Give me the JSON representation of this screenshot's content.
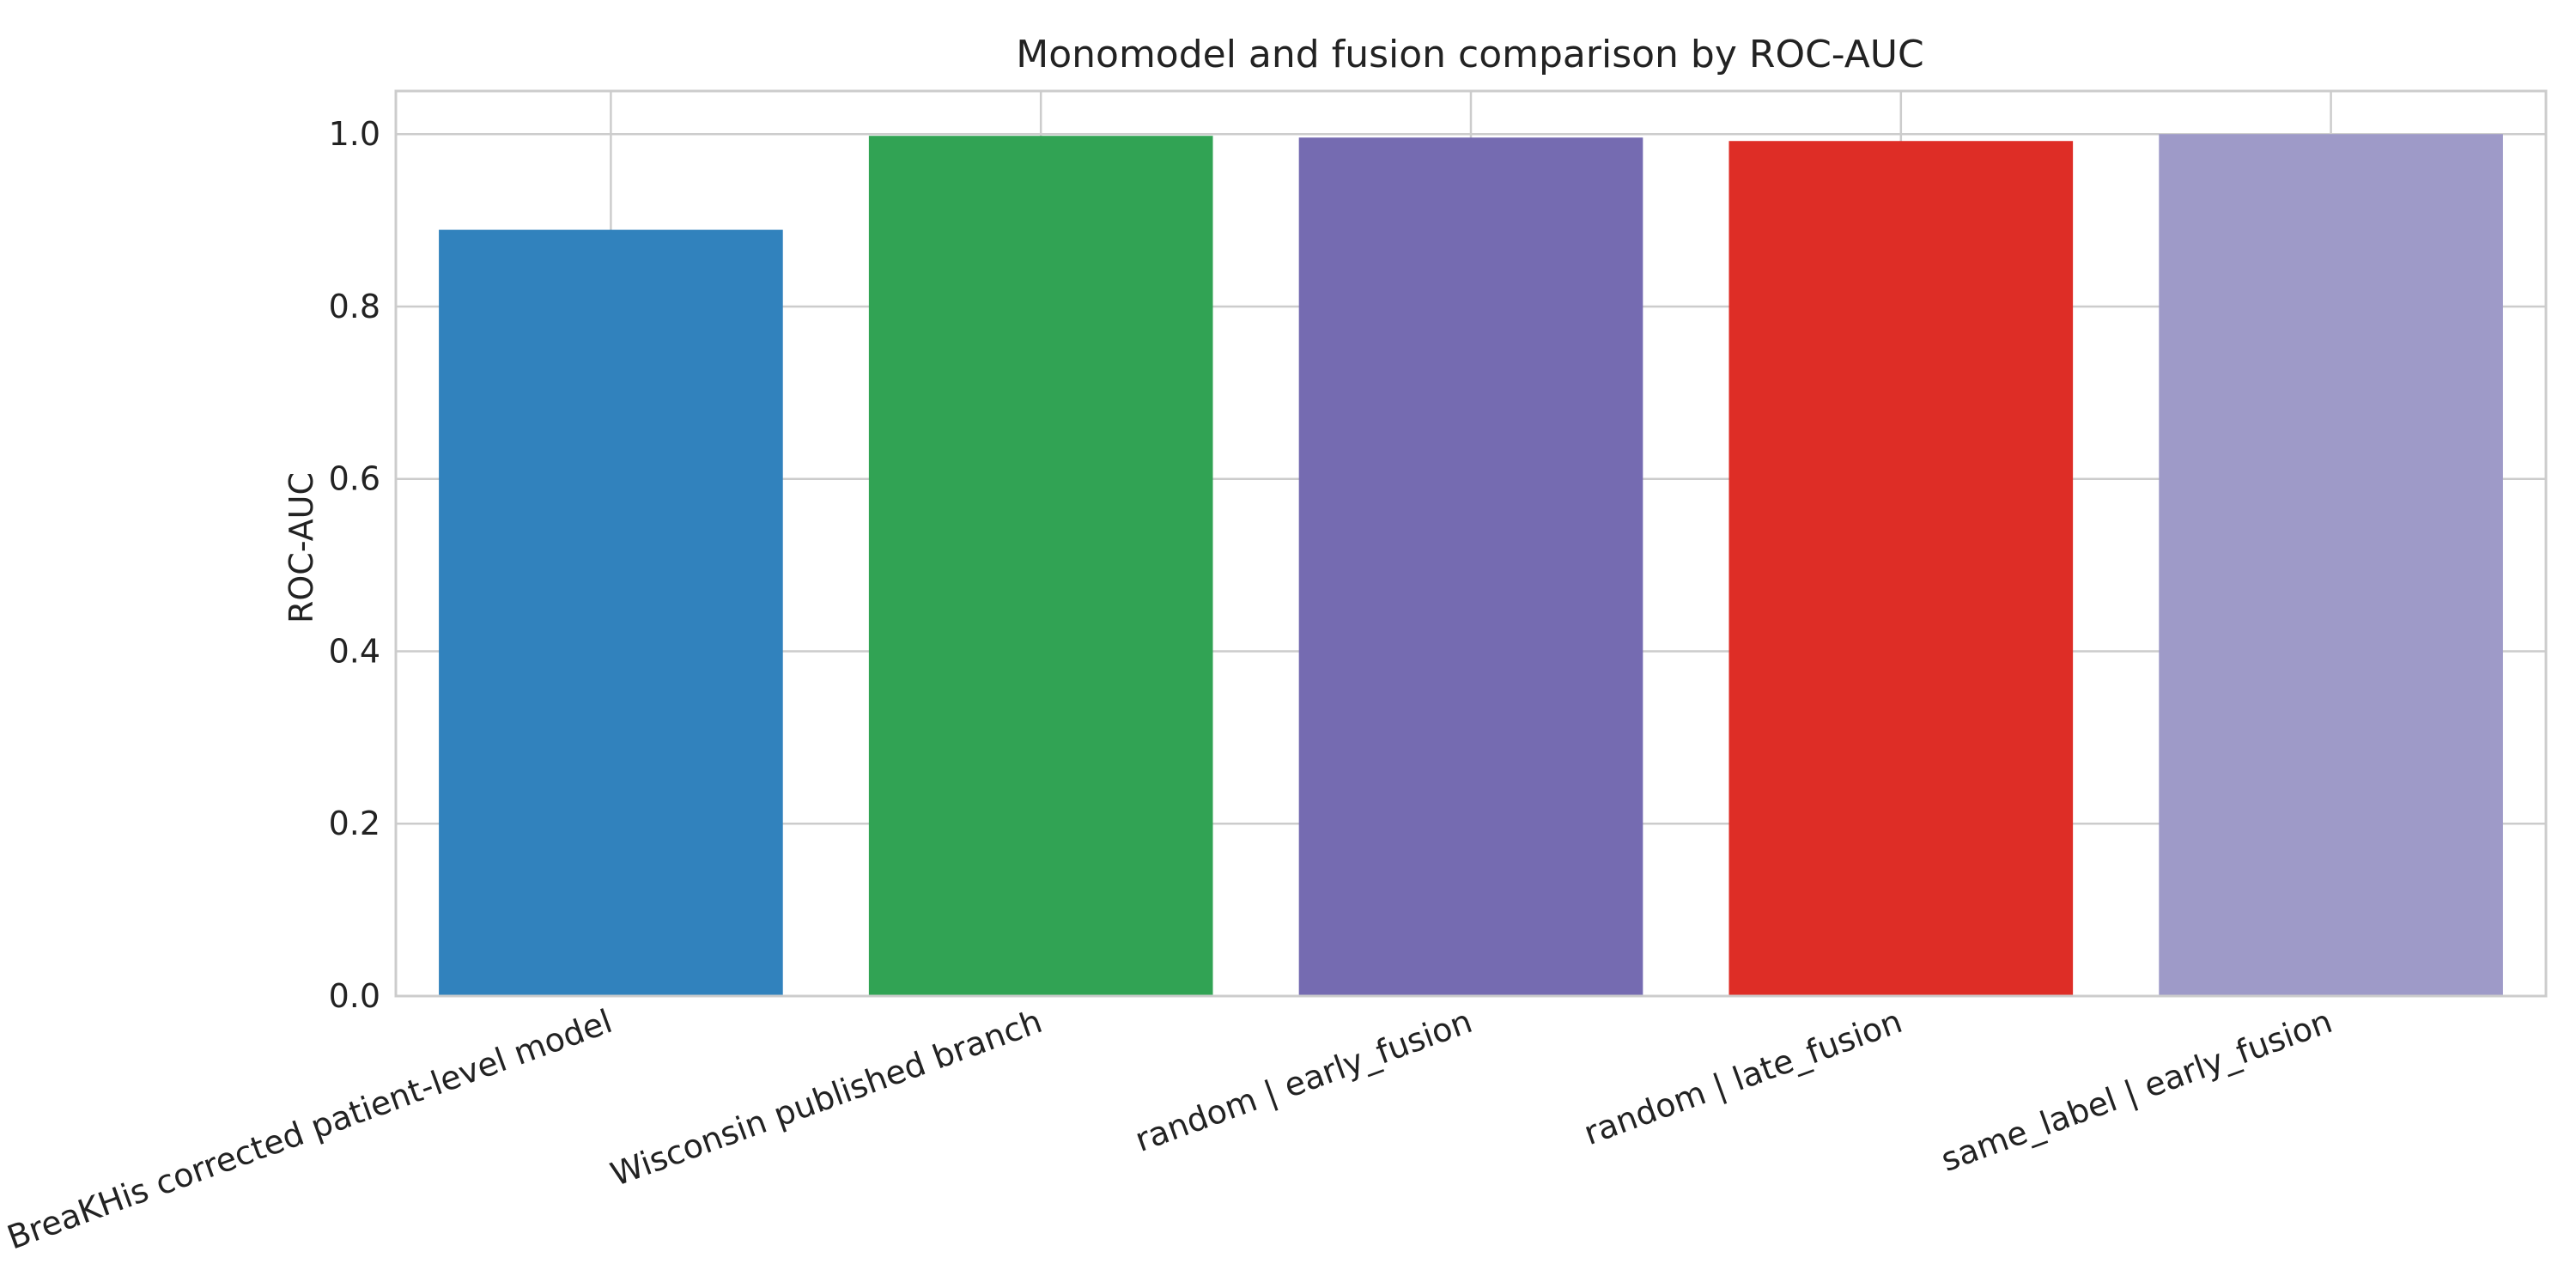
{
  "chart_data": {
    "type": "bar",
    "title": "Monomodel and fusion comparison by ROC-AUC",
    "xlabel": "",
    "ylabel": "ROC-AUC",
    "categories": [
      "BreaKHis corrected patient-level model",
      "Wisconsin published branch",
      "random | early_fusion",
      "random | late_fusion",
      "same_label | early_fusion"
    ],
    "values": [
      0.889,
      0.998,
      0.996,
      0.992,
      1.0
    ],
    "colors": [
      "#3182bd",
      "#31a354",
      "#756bb1",
      "#de2d26",
      "#9e9ac8"
    ],
    "ylim": [
      0,
      1.05
    ],
    "yticks": [
      0.0,
      0.2,
      0.4,
      0.6,
      0.8,
      1.0
    ],
    "ytick_labels": [
      "0.0",
      "0.2",
      "0.4",
      "0.6",
      "0.8",
      "1.0"
    ],
    "grid": true,
    "legend": "none"
  }
}
